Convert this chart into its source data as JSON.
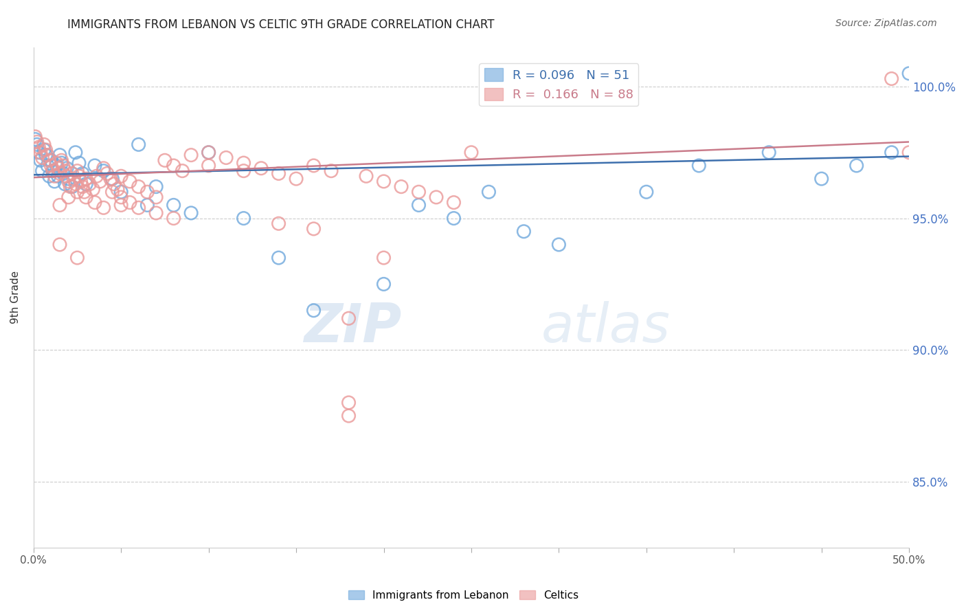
{
  "title": "IMMIGRANTS FROM LEBANON VS CELTIC 9TH GRADE CORRELATION CHART",
  "source": "Source: ZipAtlas.com",
  "ylabel": "9th Grade",
  "ytick_labels": [
    "85.0%",
    "90.0%",
    "95.0%",
    "100.0%"
  ],
  "ytick_values": [
    0.85,
    0.9,
    0.95,
    1.0
  ],
  "xlim": [
    0.0,
    0.5
  ],
  "ylim": [
    0.825,
    1.015
  ],
  "legend_blue_r": "0.096",
  "legend_blue_n": "51",
  "legend_pink_r": "0.166",
  "legend_pink_n": "88",
  "blue_color": "#6fa8dc",
  "pink_color": "#ea9999",
  "line_blue_color": "#3d6fad",
  "line_pink_color": "#c97b8a",
  "blue_points_x": [
    0.001,
    0.002,
    0.003,
    0.004,
    0.005,
    0.006,
    0.007,
    0.008,
    0.009,
    0.01,
    0.011,
    0.012,
    0.013,
    0.014,
    0.015,
    0.016,
    0.017,
    0.018,
    0.019,
    0.02,
    0.022,
    0.024,
    0.026,
    0.028,
    0.03,
    0.035,
    0.04,
    0.045,
    0.05,
    0.06,
    0.065,
    0.07,
    0.08,
    0.09,
    0.1,
    0.12,
    0.14,
    0.16,
    0.2,
    0.22,
    0.24,
    0.26,
    0.28,
    0.3,
    0.35,
    0.38,
    0.42,
    0.45,
    0.47,
    0.49,
    0.5
  ],
  "blue_points_y": [
    0.98,
    0.978,
    0.975,
    0.972,
    0.968,
    0.976,
    0.974,
    0.97,
    0.966,
    0.972,
    0.968,
    0.964,
    0.97,
    0.966,
    0.974,
    0.971,
    0.967,
    0.963,
    0.969,
    0.965,
    0.962,
    0.975,
    0.971,
    0.967,
    0.963,
    0.97,
    0.968,
    0.965,
    0.96,
    0.978,
    0.955,
    0.962,
    0.955,
    0.952,
    0.975,
    0.95,
    0.935,
    0.915,
    0.925,
    0.955,
    0.95,
    0.96,
    0.945,
    0.94,
    0.96,
    0.97,
    0.975,
    0.965,
    0.97,
    0.975,
    1.005
  ],
  "pink_points_x": [
    0.001,
    0.002,
    0.003,
    0.004,
    0.005,
    0.006,
    0.007,
    0.008,
    0.009,
    0.01,
    0.011,
    0.012,
    0.013,
    0.014,
    0.015,
    0.016,
    0.017,
    0.018,
    0.019,
    0.02,
    0.021,
    0.022,
    0.023,
    0.024,
    0.025,
    0.026,
    0.027,
    0.028,
    0.029,
    0.03,
    0.032,
    0.034,
    0.036,
    0.038,
    0.04,
    0.042,
    0.044,
    0.046,
    0.048,
    0.05,
    0.055,
    0.06,
    0.065,
    0.07,
    0.075,
    0.08,
    0.085,
    0.09,
    0.1,
    0.11,
    0.12,
    0.13,
    0.14,
    0.15,
    0.16,
    0.17,
    0.18,
    0.19,
    0.2,
    0.21,
    0.22,
    0.23,
    0.24,
    0.25,
    0.05,
    0.02,
    0.015,
    0.025,
    0.03,
    0.035,
    0.04,
    0.045,
    0.05,
    0.055,
    0.06,
    0.07,
    0.08,
    0.1,
    0.12,
    0.14,
    0.16,
    0.18,
    0.015,
    0.025,
    0.18,
    0.2,
    0.49,
    0.5
  ],
  "pink_points_y": [
    0.981,
    0.979,
    0.977,
    0.975,
    0.973,
    0.978,
    0.976,
    0.974,
    0.972,
    0.97,
    0.968,
    0.966,
    0.971,
    0.969,
    0.967,
    0.972,
    0.97,
    0.968,
    0.966,
    0.964,
    0.962,
    0.967,
    0.965,
    0.963,
    0.968,
    0.966,
    0.964,
    0.962,
    0.96,
    0.965,
    0.963,
    0.961,
    0.966,
    0.964,
    0.969,
    0.967,
    0.965,
    0.963,
    0.961,
    0.966,
    0.964,
    0.962,
    0.96,
    0.958,
    0.972,
    0.97,
    0.968,
    0.974,
    0.975,
    0.973,
    0.971,
    0.969,
    0.967,
    0.965,
    0.97,
    0.968,
    0.88,
    0.966,
    0.964,
    0.962,
    0.96,
    0.958,
    0.956,
    0.975,
    0.955,
    0.958,
    0.955,
    0.96,
    0.958,
    0.956,
    0.954,
    0.96,
    0.958,
    0.956,
    0.954,
    0.952,
    0.95,
    0.97,
    0.968,
    0.948,
    0.946,
    0.912,
    0.94,
    0.935,
    0.875,
    0.935,
    1.003,
    0.975
  ]
}
